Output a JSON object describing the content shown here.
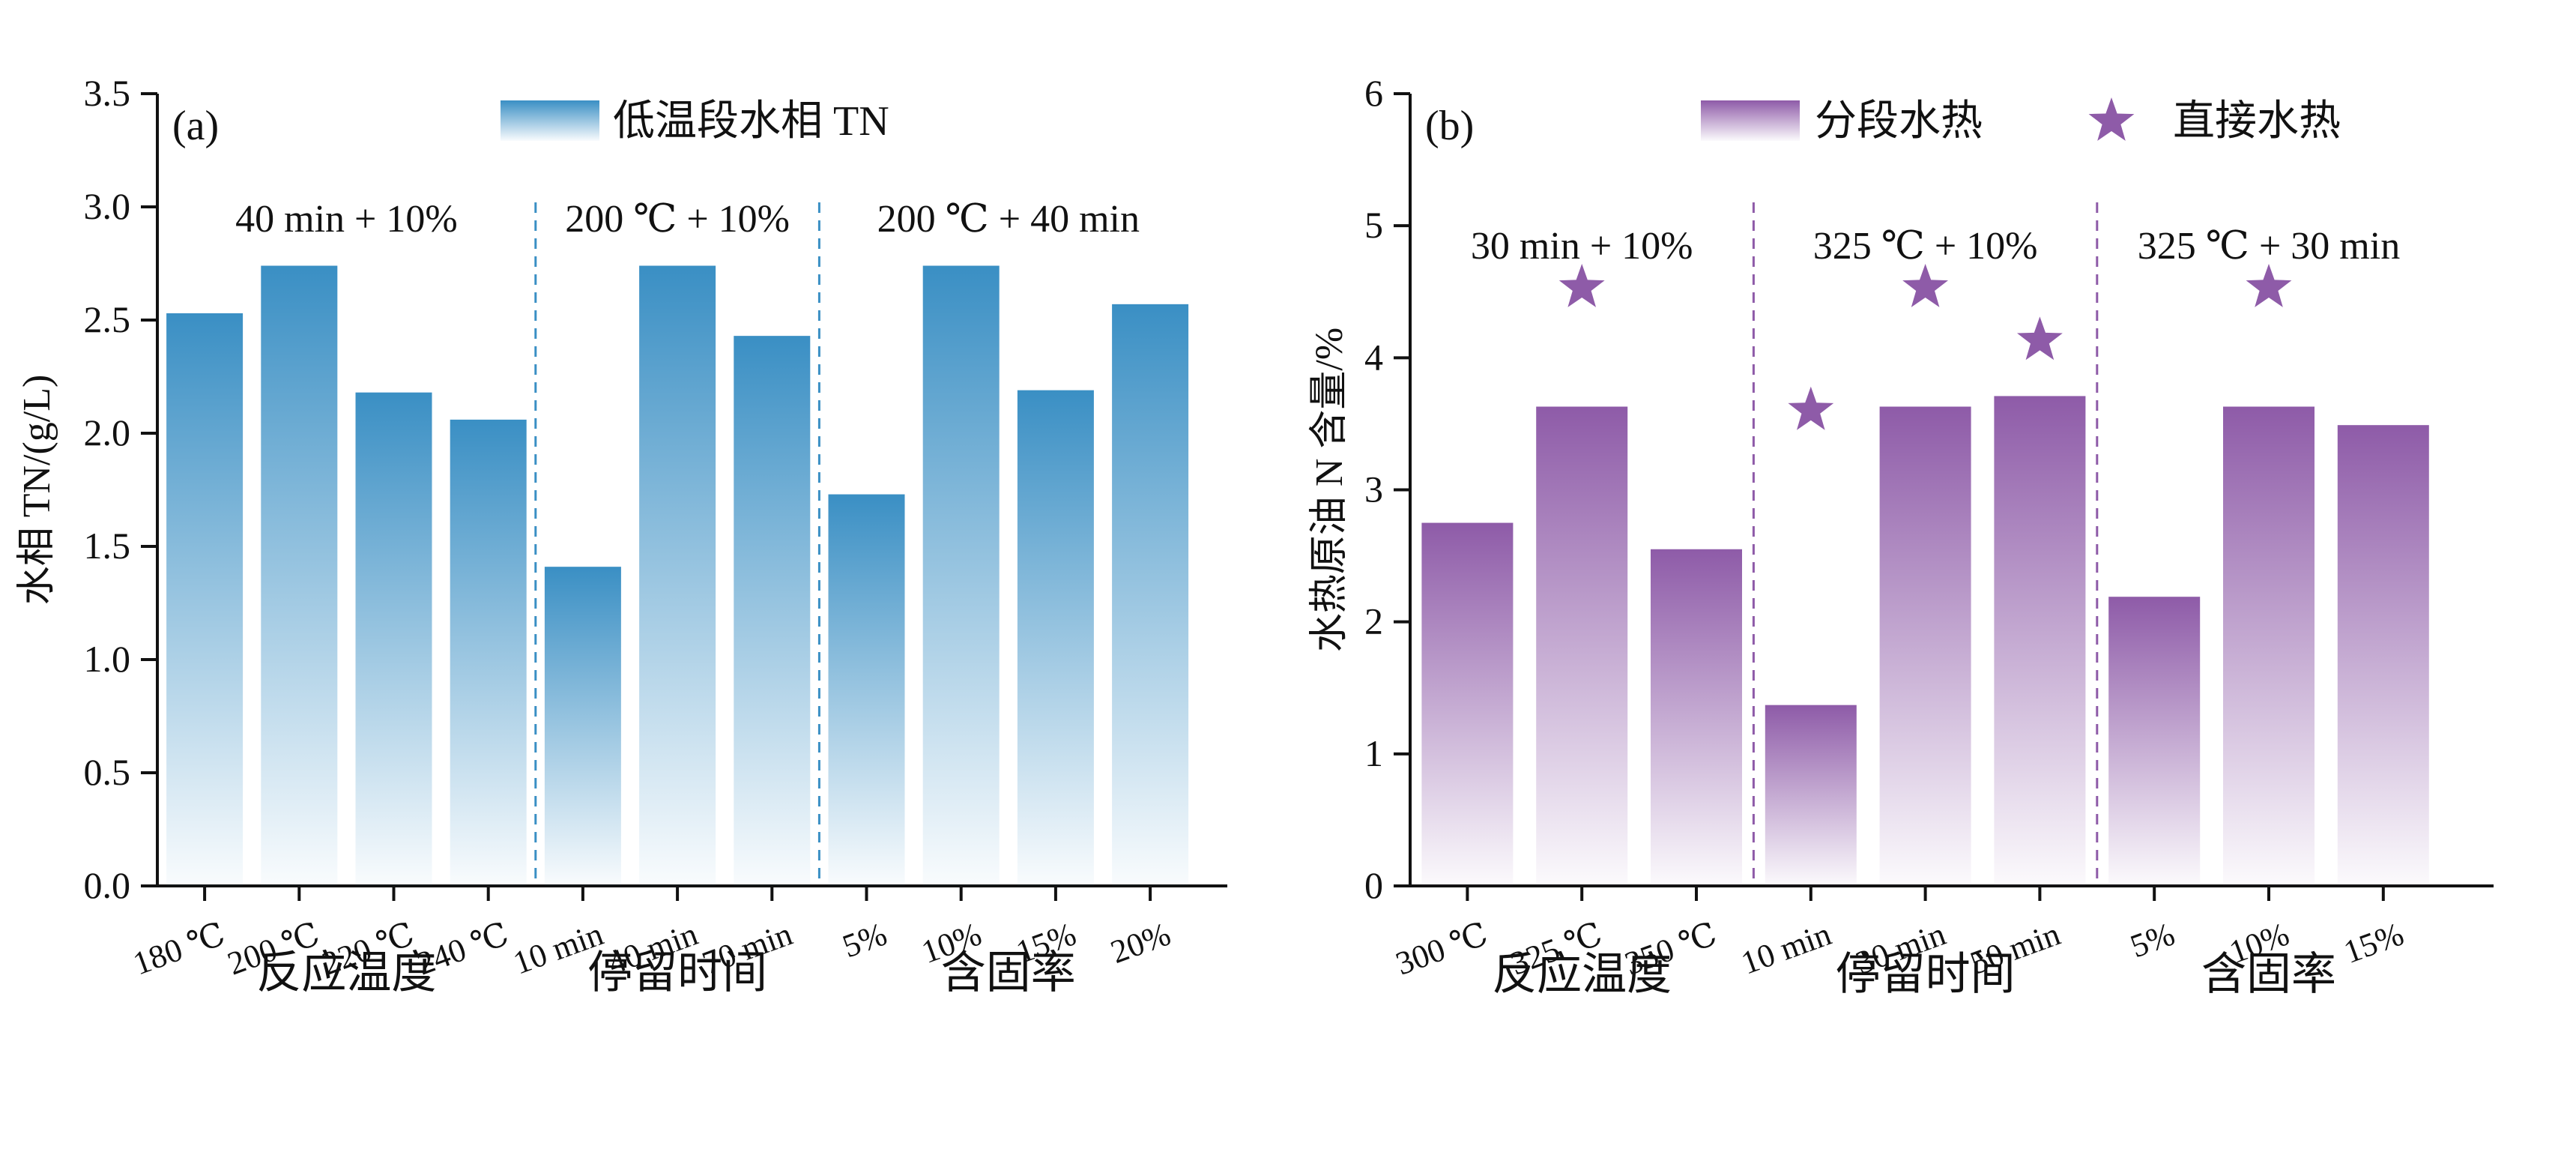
{
  "chart_data": [
    {
      "panel": "(a)",
      "type": "bar",
      "ylabel": "水相 TN/(g/L)",
      "ylim": [
        0,
        3.5
      ],
      "yticks": [
        "0.0",
        "0.5",
        "1.0",
        "1.5",
        "2.0",
        "2.5",
        "3.0",
        "3.5"
      ],
      "legend": [
        {
          "name": "低温段水相 TN",
          "kind": "bar"
        }
      ],
      "legend_position": "top-center",
      "color": "#3a8fc4",
      "groups": [
        {
          "label": "反应温度",
          "condition": "40 min + 10%",
          "categories": [
            "180 ℃",
            "200 ℃",
            "220 ℃",
            "240 ℃"
          ],
          "values": [
            2.53,
            2.74,
            2.18,
            2.06
          ]
        },
        {
          "label": "停留时间",
          "condition": "200 ℃ + 10%",
          "categories": [
            "10 min",
            "40 min",
            "70 min"
          ],
          "values": [
            1.41,
            2.74,
            2.43
          ]
        },
        {
          "label": "含固率",
          "condition": "200 ℃ + 40 min",
          "categories": [
            "5%",
            "10%",
            "15%",
            "20%"
          ],
          "values": [
            1.73,
            2.74,
            2.19,
            2.57
          ]
        }
      ]
    },
    {
      "panel": "(b)",
      "type": "bar",
      "ylabel": "水热原油 N 含量/%",
      "ylim": [
        0,
        6
      ],
      "yticks": [
        "0",
        "1",
        "2",
        "3",
        "4",
        "5",
        "6"
      ],
      "legend": [
        {
          "name": "分段水热",
          "kind": "bar"
        },
        {
          "name": "直接水热",
          "kind": "star"
        }
      ],
      "legend_position": "top-center",
      "color": "#8e5ba8",
      "groups": [
        {
          "label": "反应温度",
          "condition": "30 min + 10%",
          "categories": [
            "300 ℃",
            "325 ℃",
            "350 ℃"
          ],
          "values": [
            2.75,
            3.63,
            2.55
          ],
          "stars": [
            null,
            4.53,
            null
          ]
        },
        {
          "label": "停留时间",
          "condition": "325 ℃ + 10%",
          "categories": [
            "10 min",
            "30 min",
            "50 min"
          ],
          "values": [
            1.37,
            3.63,
            3.71
          ],
          "stars": [
            3.6,
            4.53,
            4.13
          ]
        },
        {
          "label": "含固率",
          "condition": "325 ℃ + 30 min",
          "categories": [
            "5%",
            "10%",
            "15%"
          ],
          "values": [
            2.19,
            3.63,
            3.49
          ],
          "stars": [
            null,
            4.53,
            null
          ]
        }
      ]
    }
  ]
}
